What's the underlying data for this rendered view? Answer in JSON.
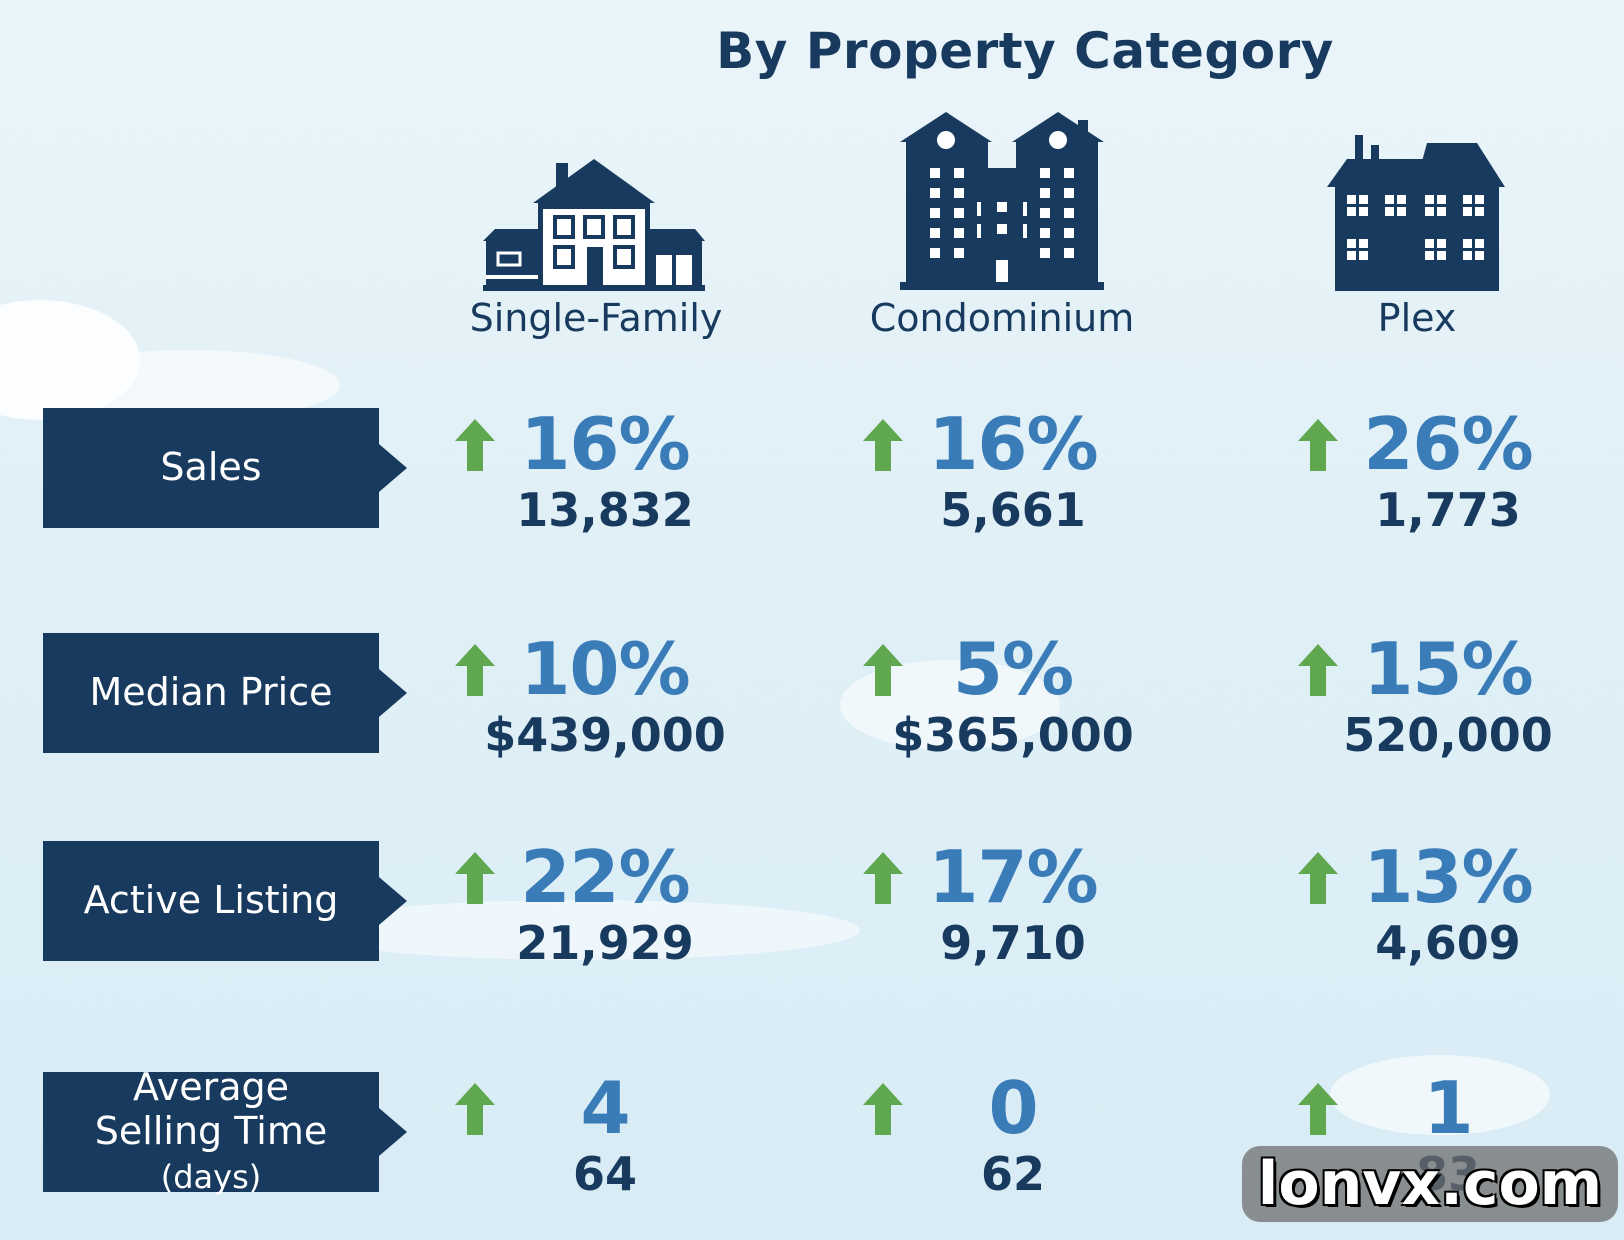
{
  "title": "By Property Category",
  "colors": {
    "navy": "#173a5e",
    "accent_blue": "#3a7cb8",
    "arrow_green": "#5fa84f"
  },
  "categories": [
    {
      "label": "Single-Family",
      "icon": "house-icon"
    },
    {
      "label": "Condominium",
      "icon": "apartment-building-icon"
    },
    {
      "label": "Plex",
      "icon": "plex-building-icon"
    }
  ],
  "rows": [
    {
      "label": "Sales",
      "label_sub": "",
      "cells": [
        {
          "change": "16%",
          "value": "13,832",
          "direction": "up"
        },
        {
          "change": "16%",
          "value": "5,661",
          "direction": "up"
        },
        {
          "change": "26%",
          "value": "1,773",
          "direction": "up"
        }
      ]
    },
    {
      "label": "Median Price",
      "label_sub": "",
      "cells": [
        {
          "change": "10%",
          "value": "$439,000",
          "direction": "up"
        },
        {
          "change": "5%",
          "value": "$365,000",
          "direction": "up"
        },
        {
          "change": "15%",
          "value": "520,000",
          "direction": "up"
        }
      ]
    },
    {
      "label": "Active Listing",
      "label_sub": "",
      "cells": [
        {
          "change": "22%",
          "value": "21,929",
          "direction": "up"
        },
        {
          "change": "17%",
          "value": "9,710",
          "direction": "up"
        },
        {
          "change": "13%",
          "value": "4,609",
          "direction": "up"
        }
      ]
    },
    {
      "label": "Average Selling Time",
      "label_sub": "(days)",
      "cells": [
        {
          "change": "4",
          "value": "64",
          "direction": "up"
        },
        {
          "change": "0",
          "value": "62",
          "direction": "up"
        },
        {
          "change": "1",
          "value": "83",
          "direction": "up"
        }
      ]
    }
  ],
  "watermark": "lonvx.com"
}
